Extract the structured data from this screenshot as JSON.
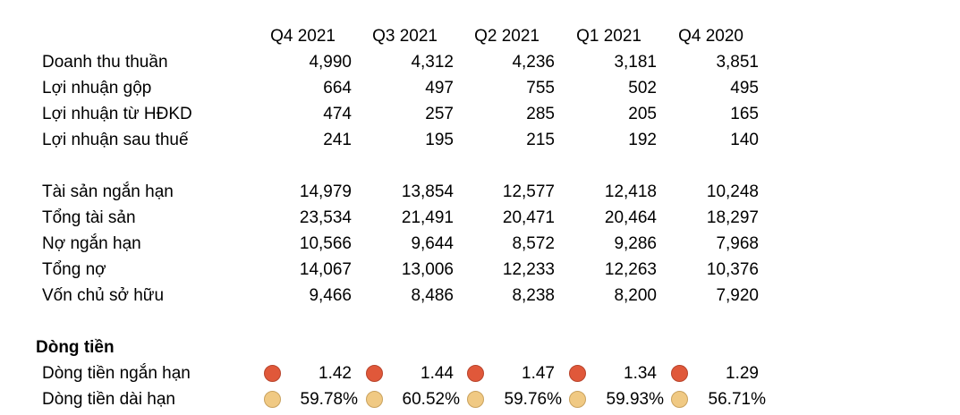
{
  "headers": [
    "Q4 2021",
    "Q3 2021",
    "Q2 2021",
    "Q1 2021",
    "Q4 2020"
  ],
  "income": [
    {
      "label": "Doanh thu thuần",
      "values": [
        "4,990",
        "4,312",
        "4,236",
        "3,181",
        "3,851"
      ]
    },
    {
      "label": "Lợi nhuận gộp",
      "values": [
        "664",
        "497",
        "755",
        "502",
        "495"
      ]
    },
    {
      "label": "Lợi nhuận từ HĐKD",
      "values": [
        "474",
        "257",
        "285",
        "205",
        "165"
      ]
    },
    {
      "label": "Lợi nhuận sau thuế",
      "values": [
        "241",
        "195",
        "215",
        "192",
        "140"
      ]
    }
  ],
  "balance": [
    {
      "label": "Tài sản ngắn hạn",
      "values": [
        "14,979",
        "13,854",
        "12,577",
        "12,418",
        "10,248"
      ]
    },
    {
      "label": "Tổng tài sản",
      "values": [
        "23,534",
        "21,491",
        "20,471",
        "20,464",
        "18,297"
      ]
    },
    {
      "label": "Nợ ngắn hạn",
      "values": [
        "10,566",
        "9,644",
        "8,572",
        "9,286",
        "7,968"
      ]
    },
    {
      "label": "Tổng nợ",
      "values": [
        "14,067",
        "13,006",
        "12,233",
        "12,263",
        "10,376"
      ]
    },
    {
      "label": "Vốn chủ sở hữu",
      "values": [
        "9,466",
        "8,486",
        "8,238",
        "8,200",
        "7,920"
      ]
    }
  ],
  "cashflow": {
    "title": "Dòng tiền",
    "rows": [
      {
        "label": "Dòng tiền ngắn hạn",
        "indicator": "red",
        "values": [
          "1.42",
          "1.44",
          "1.47",
          "1.34",
          "1.29"
        ]
      },
      {
        "label": "Dòng tiền dài hạn",
        "indicator": "tan",
        "values": [
          "59.78%",
          "60.52%",
          "59.76%",
          "59.93%",
          "56.71%"
        ]
      }
    ]
  },
  "colors": {
    "red_indicator": "#e0583a",
    "tan_indicator": "#f0c983"
  }
}
